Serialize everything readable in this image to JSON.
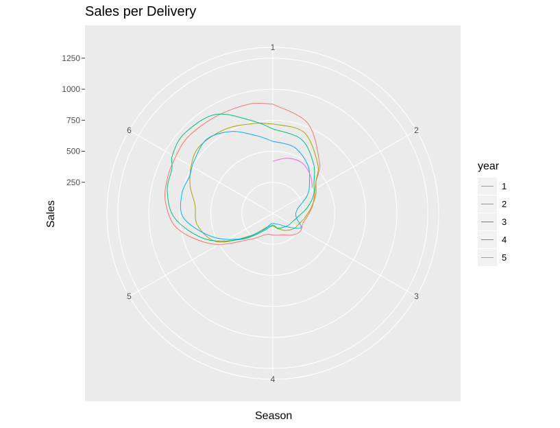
{
  "chart_data": {
    "type": "line",
    "coord": "polar",
    "title": "Sales per Delivery",
    "xlabel": "Season",
    "ylabel": "Sales",
    "theta_ticks": [
      "1",
      "2",
      "3",
      "4",
      "5",
      "6"
    ],
    "r_ticks": [
      250,
      500,
      750,
      1000,
      1250
    ],
    "rlim": [
      0,
      1250
    ],
    "grid": true,
    "legend_title": "year",
    "legend_position": "right",
    "series": [
      {
        "name": "1",
        "color": "#F8766D",
        "points": [
          [
            1,
            880
          ],
          [
            1.35,
            780
          ],
          [
            1.7,
            560
          ],
          [
            1.9,
            430
          ],
          [
            2.05,
            380
          ],
          [
            2.3,
            330
          ],
          [
            2.55,
            285
          ],
          [
            2.8,
            255
          ],
          [
            3.05,
            265
          ],
          [
            3.3,
            235
          ],
          [
            3.6,
            190
          ],
          [
            3.8,
            180
          ],
          [
            4.0,
            175
          ],
          [
            4.3,
            180
          ],
          [
            4.7,
            285
          ],
          [
            5.05,
            545
          ],
          [
            5.35,
            780
          ],
          [
            5.6,
            870
          ],
          [
            5.8,
            895
          ],
          [
            5.98,
            905
          ],
          [
            6.2,
            920
          ],
          [
            6.5,
            905
          ],
          [
            6.8,
            900
          ],
          [
            7.0,
            880
          ]
        ]
      },
      {
        "name": "2",
        "color": "#A3A500",
        "points": [
          [
            1.0,
            720
          ],
          [
            1.35,
            700
          ],
          [
            1.7,
            540
          ],
          [
            1.9,
            430
          ],
          [
            2.1,
            380
          ],
          [
            2.35,
            315
          ],
          [
            2.6,
            265
          ],
          [
            2.85,
            230
          ],
          [
            3.1,
            210
          ],
          [
            3.4,
            170
          ],
          [
            3.7,
            130
          ],
          [
            3.9,
            108
          ],
          [
            4.1,
            105
          ],
          [
            4.35,
            115
          ],
          [
            4.75,
            255
          ],
          [
            5.05,
            505
          ],
          [
            5.35,
            615
          ],
          [
            5.6,
            630
          ],
          [
            5.8,
            700
          ],
          [
            6.0,
            760
          ],
          [
            6.2,
            800
          ],
          [
            6.5,
            780
          ],
          [
            6.8,
            740
          ],
          [
            7.0,
            720
          ]
        ]
      },
      {
        "name": "3",
        "color": "#00BF7D",
        "points": [
          [
            1.0,
            680
          ],
          [
            1.35,
            640
          ],
          [
            1.65,
            520
          ],
          [
            1.9,
            410
          ],
          [
            2.1,
            360
          ],
          [
            2.35,
            280
          ],
          [
            2.6,
            210
          ],
          [
            2.85,
            175
          ],
          [
            3.1,
            160
          ],
          [
            3.4,
            140
          ],
          [
            3.7,
            125
          ],
          [
            3.95,
            95
          ],
          [
            4.2,
            110
          ],
          [
            4.5,
            170
          ],
          [
            4.85,
            335
          ],
          [
            5.15,
            580
          ],
          [
            5.45,
            790
          ],
          [
            5.7,
            870
          ],
          [
            5.9,
            890
          ],
          [
            6.0,
            935
          ],
          [
            6.2,
            960
          ],
          [
            6.5,
            920
          ],
          [
            6.8,
            760
          ],
          [
            7.0,
            680
          ]
        ]
      },
      {
        "name": "4",
        "color": "#00B0F6",
        "points": [
          [
            1.0,
            580
          ],
          [
            1.3,
            560
          ],
          [
            1.6,
            480
          ],
          [
            1.85,
            380
          ],
          [
            2.05,
            310
          ],
          [
            2.35,
            200
          ],
          [
            2.65,
            190
          ],
          [
            2.95,
            255
          ],
          [
            3.2,
            165
          ],
          [
            3.45,
            110
          ],
          [
            3.7,
            90
          ],
          [
            3.95,
            82
          ],
          [
            4.2,
            90
          ],
          [
            4.5,
            155
          ],
          [
            4.85,
            325
          ],
          [
            5.15,
            525
          ],
          [
            5.45,
            720
          ],
          [
            5.7,
            750
          ],
          [
            5.9,
            735
          ],
          [
            6.05,
            760
          ],
          [
            6.3,
            800
          ],
          [
            6.55,
            740
          ],
          [
            6.8,
            640
          ],
          [
            7.0,
            580
          ]
        ]
      },
      {
        "name": "5",
        "color": "#E76BF3",
        "points": [
          [
            1.0,
            420
          ],
          [
            1.25,
            460
          ],
          [
            1.5,
            470
          ],
          [
            1.75,
            430
          ],
          [
            1.95,
            380
          ]
        ]
      }
    ]
  }
}
